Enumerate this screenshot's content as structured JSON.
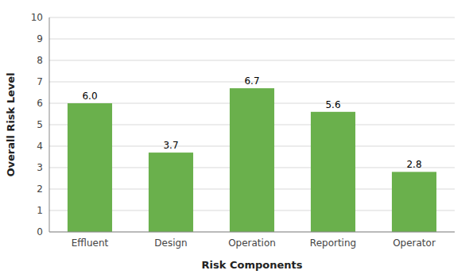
{
  "chart_data": {
    "type": "bar",
    "categories": [
      "Effluent",
      "Design",
      "Operation",
      "Reporting",
      "Operator"
    ],
    "values": [
      6.0,
      3.7,
      6.7,
      5.6,
      2.8
    ],
    "value_labels": [
      "6.0",
      "3.7",
      "6.7",
      "5.6",
      "2.8"
    ],
    "data_labels": true,
    "color": "#6ab04c",
    "xlabel": "Risk Components",
    "ylabel": "Overall Risk Level",
    "ylim": [
      0,
      10
    ],
    "yticks": [
      0,
      1,
      2,
      3,
      4,
      5,
      6,
      7,
      8,
      9,
      10
    ],
    "grid": true
  }
}
